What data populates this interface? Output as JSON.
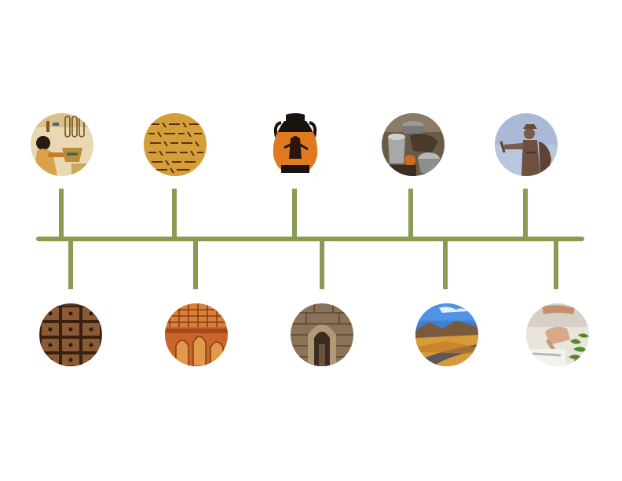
{
  "timeline": {
    "line_color": "#8a9b53",
    "top_nodes": [
      {
        "icon": "egyptian-papyrus-icon"
      },
      {
        "icon": "cuneiform-tablet-icon"
      },
      {
        "icon": "greek-amphora-icon"
      },
      {
        "icon": "metal-cookware-icon"
      },
      {
        "icon": "bronze-statue-icon"
      }
    ],
    "bottom_nodes": [
      {
        "icon": "wooden-drawer-cabinet-icon"
      },
      {
        "icon": "carved-temple-icon"
      },
      {
        "icon": "stone-archway-icon"
      },
      {
        "icon": "desert-road-icon"
      },
      {
        "icon": "cooking-hands-icon"
      }
    ]
  }
}
